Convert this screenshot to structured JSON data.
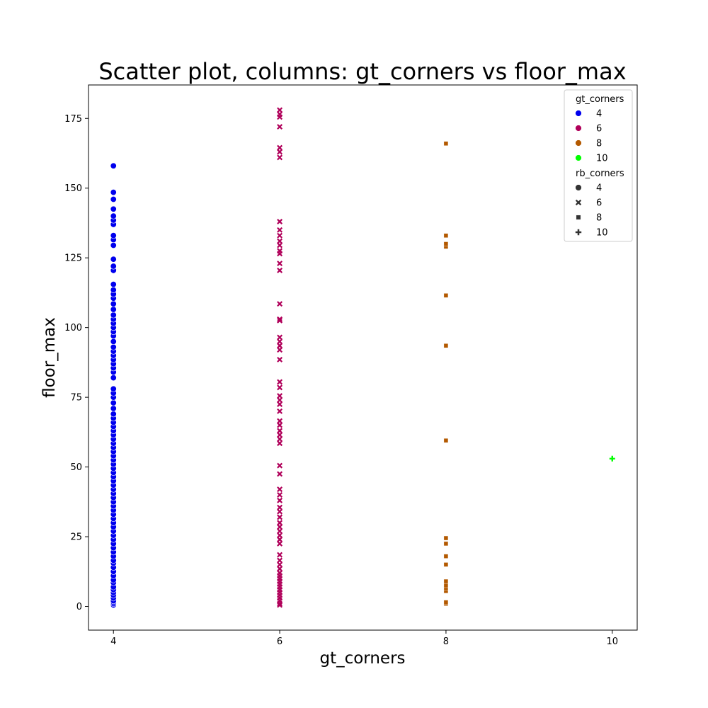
{
  "chart_data": {
    "type": "scatter",
    "title": "Scatter plot, columns: gt_corners vs floor_max",
    "xlabel": "gt_corners",
    "ylabel": "floor_max",
    "xlim": [
      3.7,
      10.3
    ],
    "ylim": [
      -8.5,
      187
    ],
    "xticks": [
      4,
      6,
      8,
      10
    ],
    "yticks": [
      0,
      25,
      50,
      75,
      100,
      125,
      150,
      175
    ],
    "grid": false,
    "legend": {
      "placement": "top-right",
      "hue_title": "gt_corners",
      "hue_entries": [
        {
          "label": "4",
          "color": "#0000ee"
        },
        {
          "label": "6",
          "color": "#b0005a"
        },
        {
          "label": "8",
          "color": "#b35900"
        },
        {
          "label": "10",
          "color": "#00ff00"
        }
      ],
      "style_title": "rb_corners",
      "style_entries": [
        {
          "label": "4",
          "marker": "circle"
        },
        {
          "label": "6",
          "marker": "x"
        },
        {
          "label": "8",
          "marker": "square"
        },
        {
          "label": "10",
          "marker": "plus"
        }
      ]
    },
    "series": [
      {
        "gt_corners": 4,
        "rb_corners": 4,
        "marker": "circle",
        "color": "#0000ee",
        "x": 4,
        "y": [
          0.5,
          1,
          1.5,
          2,
          3,
          4,
          5,
          6,
          7,
          8.5,
          9.5,
          11,
          12.5,
          14,
          15.5,
          16.5,
          18,
          19.5,
          21,
          22.5,
          24,
          25.5,
          27,
          28.5,
          30,
          31.5,
          33,
          34.5,
          36,
          37.5,
          39,
          40.5,
          42,
          43.5,
          45,
          46.5,
          48,
          49.5,
          51,
          52.5,
          54,
          55.5,
          57,
          58.5,
          60,
          61.5,
          63,
          64.5,
          66,
          67.5,
          69,
          71,
          73,
          75,
          76.5,
          78,
          82,
          84,
          85.5,
          87,
          88.5,
          90,
          91.5,
          93,
          95,
          97,
          98.5,
          100,
          101.5,
          103,
          104.5,
          106.5,
          108.5,
          110.5,
          112,
          113.5,
          115.5,
          120.5,
          122,
          124.5,
          129.5,
          131.5,
          133,
          137,
          138.5,
          140,
          142.5,
          146,
          148.5,
          158
        ]
      },
      {
        "gt_corners": 6,
        "rb_corners": 6,
        "marker": "x",
        "color": "#b0005a",
        "x": 6,
        "y": [
          0.5,
          1,
          2,
          3,
          4,
          5,
          6,
          7,
          8,
          9,
          10,
          11,
          12,
          13.5,
          15,
          16.5,
          18.5,
          22.5,
          24,
          25.5,
          27,
          28.5,
          30,
          32,
          34,
          35.5,
          38,
          40,
          42,
          47.5,
          50.5,
          58.5,
          60,
          61.5,
          63,
          65,
          66.5,
          70,
          72.5,
          74,
          75.5,
          78.5,
          80.5,
          88.5,
          92,
          93.5,
          95,
          96.5,
          102.5,
          103,
          108.5,
          120.5,
          123,
          126.5,
          127.5,
          129.5,
          131,
          133,
          135,
          138,
          161,
          163,
          164.5,
          172,
          175.5,
          176.5,
          178
        ]
      },
      {
        "gt_corners": 8,
        "rb_corners": 8,
        "marker": "square",
        "color": "#b35900",
        "x": 8,
        "y": [
          1,
          1.5,
          5.5,
          6.5,
          7.5,
          9,
          15,
          18,
          22.5,
          24.5,
          59.5,
          93.5,
          111.5,
          129,
          130,
          133,
          166
        ]
      },
      {
        "gt_corners": 10,
        "rb_corners": 10,
        "marker": "plus",
        "color": "#00ff00",
        "x": 10,
        "y": [
          53
        ]
      }
    ]
  }
}
